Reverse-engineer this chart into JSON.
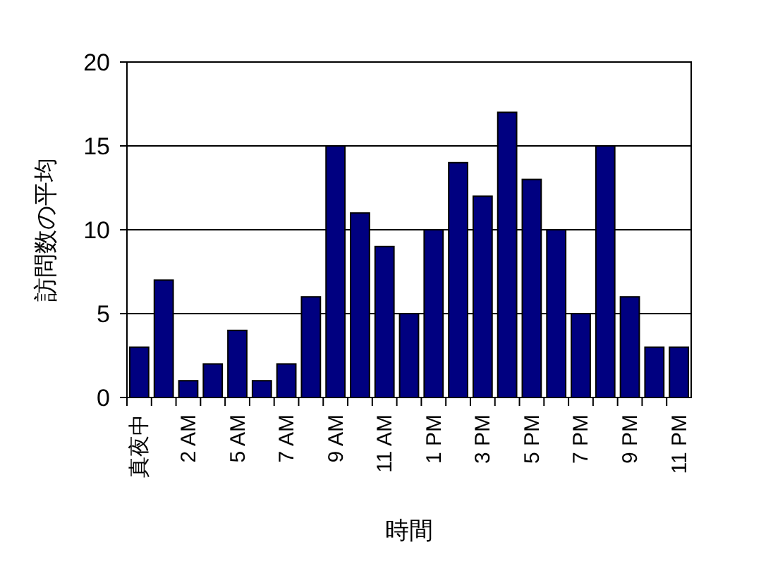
{
  "chart_data": {
    "type": "bar",
    "xlabel": "時間",
    "ylabel": "訪問数の平均",
    "categories": [
      "真夜中",
      null,
      "2 AM",
      null,
      "5 AM",
      null,
      "7 AM",
      null,
      "9 AM",
      null,
      "11 AM",
      null,
      "1 PM",
      null,
      "3 PM",
      null,
      "5 PM",
      null,
      "7 PM",
      null,
      "9 PM",
      null,
      "11 PM"
    ],
    "values": [
      3,
      7,
      1,
      2,
      4,
      1,
      2,
      6,
      15,
      11,
      9,
      5,
      10,
      14,
      12,
      17,
      13,
      10,
      5,
      15,
      6,
      3,
      3
    ],
    "color": "#000080",
    "ylim": [
      0,
      20
    ],
    "yticks": [
      0,
      5,
      10,
      15,
      20
    ],
    "grid": "y"
  }
}
